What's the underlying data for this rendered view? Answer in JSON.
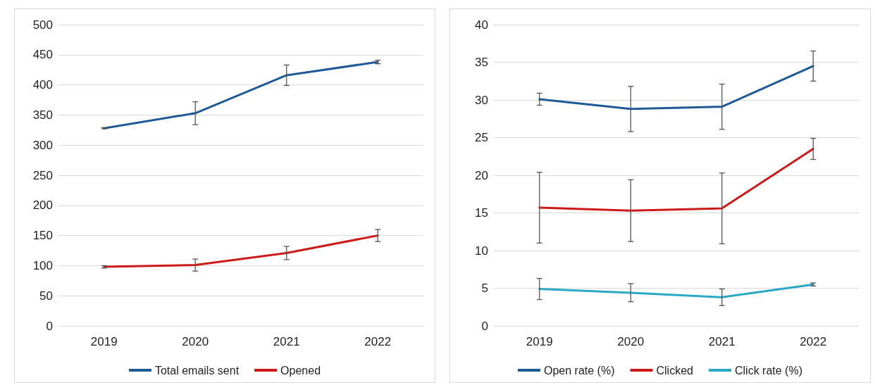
{
  "chart_data": [
    {
      "type": "line",
      "categories": [
        "2019",
        "2020",
        "2021",
        "2022"
      ],
      "ylim": [
        0,
        500
      ],
      "yticks": [
        0,
        50,
        100,
        150,
        200,
        250,
        300,
        350,
        400,
        450,
        500
      ],
      "grid": "y",
      "legend": "bottom",
      "marker": "none",
      "line_style": "solid",
      "series": [
        {
          "name": "Total emails sent",
          "color": "#1f5a96",
          "values": [
            328,
            353,
            416,
            438
          ],
          "errors": [
            1,
            19,
            17,
            3
          ]
        },
        {
          "name": "Opened",
          "color": "#cc1a1a",
          "values": [
            98,
            101,
            121,
            150
          ],
          "errors": [
            2,
            10,
            11,
            10
          ]
        }
      ]
    },
    {
      "type": "line",
      "categories": [
        "2019",
        "2020",
        "2021",
        "2022"
      ],
      "ylim": [
        0,
        40
      ],
      "yticks": [
        0,
        5,
        10,
        15,
        20,
        25,
        30,
        35,
        40
      ],
      "grid": "y",
      "legend": "bottom",
      "marker": "none",
      "line_style": "solid",
      "series": [
        {
          "name": "Open rate (%)",
          "color": "#1f5a96",
          "values": [
            30.1,
            28.8,
            29.1,
            34.5
          ],
          "errors": [
            0.8,
            3,
            3,
            2
          ]
        },
        {
          "name": "Clicked",
          "color": "#cc1a1a",
          "values": [
            15.7,
            15.3,
            15.6,
            23.5
          ],
          "errors": [
            4.7,
            4.1,
            4.7,
            1.4
          ]
        },
        {
          "name": "Click rate (%)",
          "color": "#2aa8c4",
          "values": [
            4.9,
            4.4,
            3.8,
            5.5
          ],
          "errors": [
            1.4,
            1.2,
            1.1,
            0.2
          ]
        }
      ]
    }
  ]
}
